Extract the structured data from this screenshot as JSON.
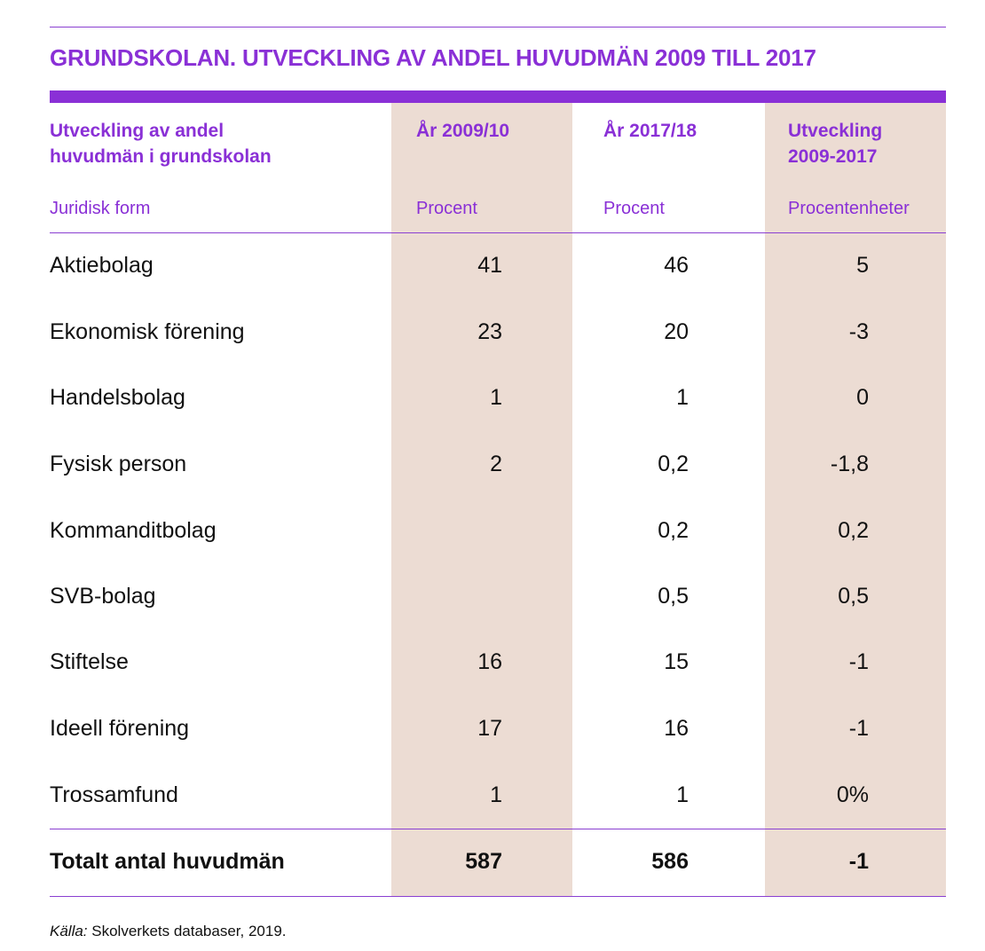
{
  "title": "GRUNDSKOLAN. UTVECKLING AV ANDEL HUVUDMÄN 2009 TILL 2017",
  "header": {
    "col0_line1": "Utveckling av andel",
    "col0_line2": "huvudmän i grundskolan",
    "col1": "År 2009/10",
    "col2": "År 2017/18",
    "col3_line1": "Utveckling",
    "col3_line2": "2009-2017"
  },
  "subheader": {
    "col0": "Juridisk form",
    "col1": "Procent",
    "col2": "Procent",
    "col3": "Procentenheter"
  },
  "rows": [
    {
      "label": "Aktiebolag",
      "v2009": "41",
      "v2017": "46",
      "change": "5"
    },
    {
      "label": "Ekonomisk förening",
      "v2009": "23",
      "v2017": "20",
      "change": "-3"
    },
    {
      "label": "Handelsbolag",
      "v2009": "1",
      "v2017": "1",
      "change": "0"
    },
    {
      "label": "Fysisk person",
      "v2009": "2",
      "v2017": "0,2",
      "change": "-1,8"
    },
    {
      "label": "Kommanditbolag",
      "v2009": "",
      "v2017": "0,2",
      "change": "0,2"
    },
    {
      "label": "SVB-bolag",
      "v2009": "",
      "v2017": "0,5",
      "change": "0,5"
    },
    {
      "label": "Stiftelse",
      "v2009": "16",
      "v2017": "15",
      "change": "-1"
    },
    {
      "label": "Ideell förening",
      "v2009": "17",
      "v2017": "16",
      "change": "-1"
    },
    {
      "label": "Trossamfund",
      "v2009": "1",
      "v2017": "1",
      "change": "0%"
    }
  ],
  "total": {
    "label": "Totalt antal huvudmän",
    "v2009": "587",
    "v2017": "586",
    "change": "-1"
  },
  "source": {
    "prefix": "Källa:",
    "text": " Skolverkets databaser, 2019."
  },
  "colors": {
    "accent": "#8a30d6",
    "shade": "#ecdcd3"
  }
}
